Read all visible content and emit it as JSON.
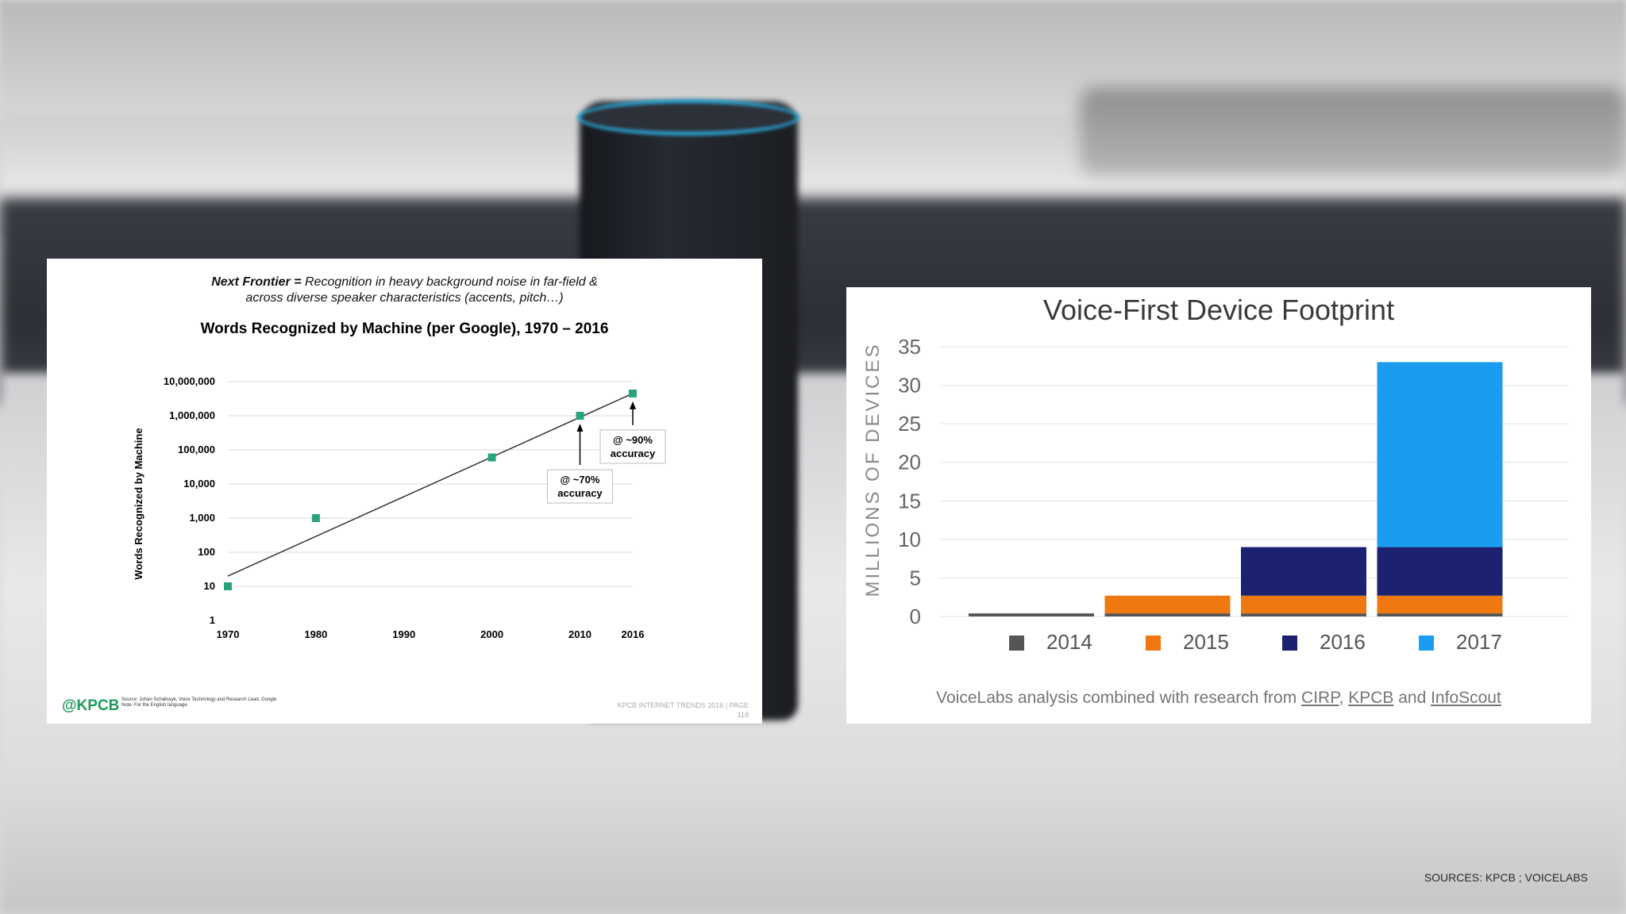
{
  "left_panel": {
    "frontier_bold": "Next Frontier =",
    "frontier_line1": " Recognition in heavy background noise in far-field &",
    "frontier_line2": "across diverse speaker characteristics (accents, pitch…)",
    "logo": "@KPCB",
    "source_note_line1": "Source: Johan Schalkwyk, Voice Technology and Research Lead, Google",
    "source_note_line2": "Note: For the English language",
    "footer_line1": "KPCB INTERNET TRENDS 2016  |  PAGE",
    "footer_line2": "118"
  },
  "right_panel": {
    "caption_prefix": "VoiceLabs analysis combined with research from ",
    "link_cirp": "CIRP",
    "sep1": ", ",
    "link_kpcb": "KPCB",
    "sep2": " and ",
    "link_infoscout": "InfoScout"
  },
  "sources": "SOURCES: KPCB ; VOICELABS",
  "chart_data": [
    {
      "type": "scatter",
      "title": "Words Recognized by Machine (per Google), 1970 – 2016",
      "ylabel": "Words Recognized by Machine",
      "y_scale": "log",
      "y_ticks": [
        "1",
        "10",
        "100",
        "1,000",
        "10,000",
        "100,000",
        "1,000,000",
        "10,000,000"
      ],
      "x_ticks": [
        "1970",
        "1980",
        "1990",
        "2000",
        "2010",
        "2016"
      ],
      "points": [
        {
          "x": 1970,
          "y": 10
        },
        {
          "x": 1980,
          "y": 1000
        },
        {
          "x": 2000,
          "y": 60000
        },
        {
          "x": 2010,
          "y": 1000000
        },
        {
          "x": 2016,
          "y": 4500000
        }
      ],
      "trendline": [
        {
          "x": 1970,
          "y": 20
        },
        {
          "x": 2016,
          "y": 4500000
        }
      ],
      "annotations": [
        {
          "x": 2010,
          "line1": "@ ~70%",
          "line2": "accuracy"
        },
        {
          "x": 2016,
          "line1": "@ ~90%",
          "line2": "accuracy"
        }
      ],
      "marker_color": "#2aa27a"
    },
    {
      "type": "bar",
      "stacked": true,
      "title": "Voice-First Device Footprint",
      "ylabel": "MILLIONS OF DEVICES",
      "ylim": [
        0,
        35
      ],
      "y_ticks": [
        0,
        5,
        10,
        15,
        20,
        25,
        30,
        35
      ],
      "categories": [
        "2014",
        "2015",
        "2016",
        "2017"
      ],
      "series": [
        {
          "name": "2014",
          "color": "#555555",
          "values": [
            0.4,
            0.4,
            0.4,
            0.4
          ]
        },
        {
          "name": "2015",
          "color": "#f07810",
          "values": [
            0,
            2.3,
            2.3,
            2.3
          ]
        },
        {
          "name": "2016",
          "color": "#1c2170",
          "values": [
            0,
            0,
            6.3,
            6.3
          ]
        },
        {
          "name": "2017",
          "color": "#1a9cf0",
          "values": [
            0,
            0,
            0,
            24
          ]
        }
      ]
    }
  ]
}
